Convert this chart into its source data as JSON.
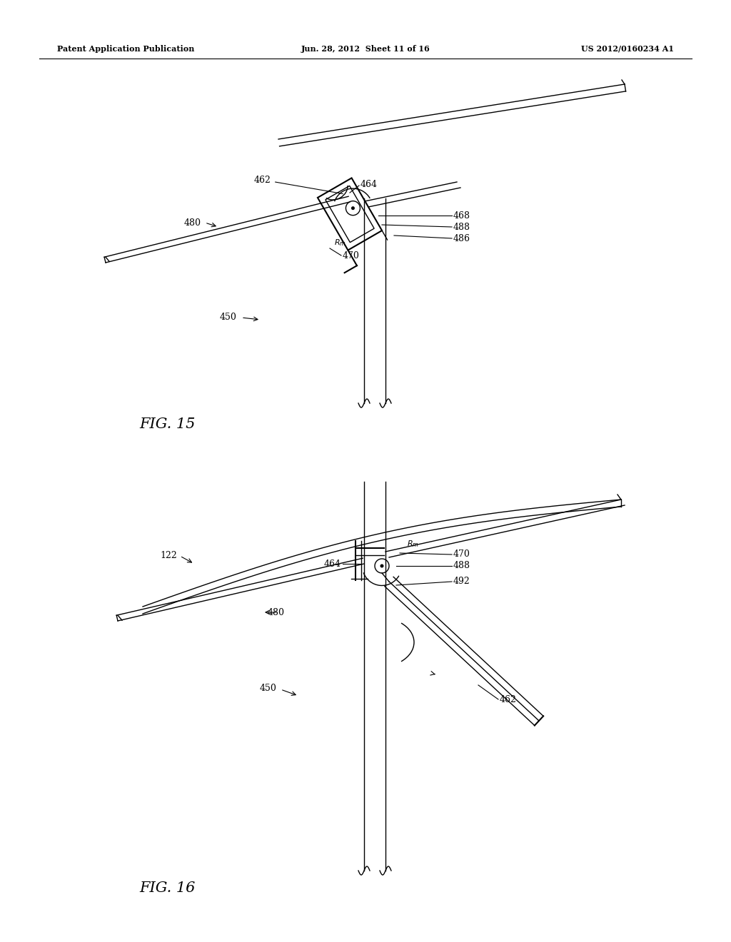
{
  "bg_color": "#ffffff",
  "line_color": "#000000",
  "header_left": "Patent Application Publication",
  "header_mid": "Jun. 28, 2012  Sheet 11 of 16",
  "header_right": "US 2012/0160234 A1",
  "fig15_label": "FIG. 15",
  "fig16_label": "FIG. 16"
}
